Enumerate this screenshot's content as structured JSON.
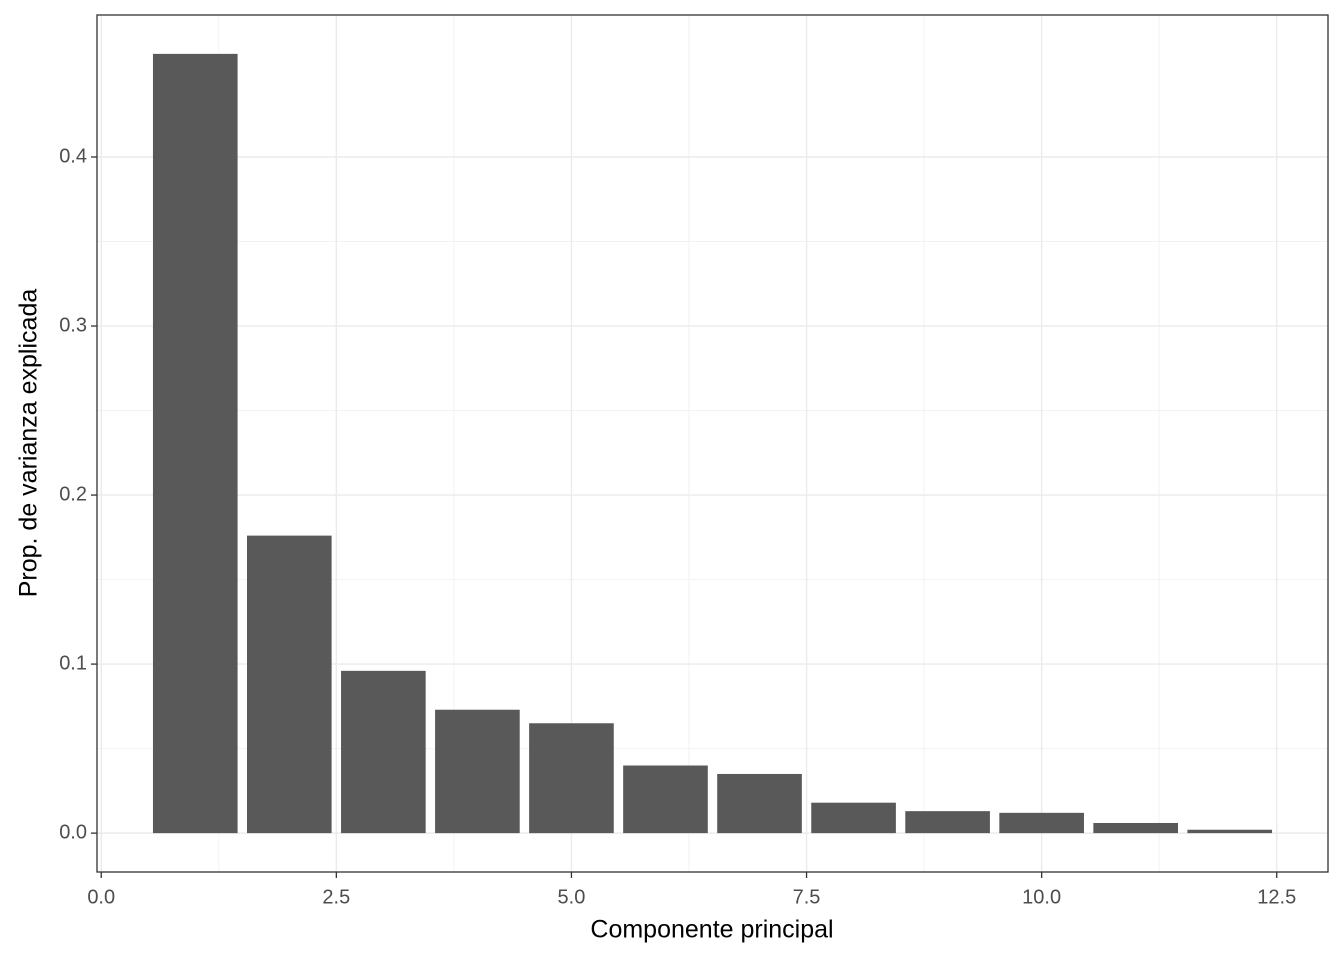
{
  "chart_data": {
    "type": "bar",
    "x_label": "Componente principal",
    "y_label": "Prop. de varianza explicada",
    "x": [
      1,
      2,
      3,
      4,
      5,
      6,
      7,
      8,
      9,
      10,
      11,
      12
    ],
    "values": [
      0.461,
      0.176,
      0.096,
      0.073,
      0.065,
      0.04,
      0.035,
      0.018,
      0.013,
      0.012,
      0.006,
      0.002
    ],
    "color": "#595959",
    "xlim": [
      -0.045,
      13.045
    ],
    "xticks": [
      {
        "value": 0,
        "label": "0.0"
      },
      2.5,
      {
        "value": 5,
        "label": "5.0"
      },
      7.5,
      {
        "value": 10,
        "label": "10.0"
      },
      12.5
    ],
    "ylim": [
      -0.023,
      0.484
    ],
    "yticks": [
      {
        "value": 0,
        "label": "0.0"
      },
      0.1,
      0.2,
      0.3,
      0.4
    ],
    "grid": true
  }
}
